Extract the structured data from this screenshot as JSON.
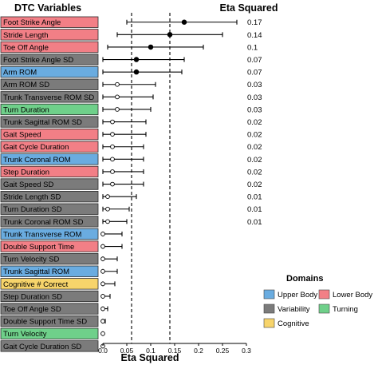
{
  "header": {
    "left_title": "DTC Variables",
    "right_title": "Eta Squared"
  },
  "colors": {
    "Lower Body": "#f27f86",
    "Upper Body": "#6aace0",
    "Variability": "#7b7b7b",
    "Turning": "#6fd08a",
    "Cognitive": "#f7d46b"
  },
  "legend": {
    "title": "Domains",
    "items": [
      {
        "label": "Upper Body",
        "color": "#6aace0"
      },
      {
        "label": "Lower Body",
        "color": "#f27f86"
      },
      {
        "label": "Variability",
        "color": "#7b7b7b"
      },
      {
        "label": "Turning",
        "color": "#6fd08a"
      },
      {
        "label": "Cognitive",
        "color": "#f7d46b"
      }
    ]
  },
  "chart_data": {
    "type": "scatter",
    "title": "",
    "xlabel": "Eta Squared",
    "ylabel": "",
    "xlim": [
      0,
      0.3
    ],
    "xticks": [
      "0.0",
      "0.05",
      "0.1",
      "0.15",
      "0.2",
      "0.25",
      "0.3"
    ],
    "reference_lines": [
      0.06,
      0.14
    ],
    "series": [
      {
        "label": "Foot Strike Angle",
        "domain": "Lower Body",
        "estimate": 0.17,
        "ci": [
          0.05,
          0.28
        ],
        "filled": true,
        "eta_label": "0.17"
      },
      {
        "label": "Stride Length",
        "domain": "Lower Body",
        "estimate": 0.14,
        "ci": [
          0.03,
          0.25
        ],
        "filled": true,
        "eta_label": "0.14"
      },
      {
        "label": "Toe Off Angle",
        "domain": "Lower Body",
        "estimate": 0.1,
        "ci": [
          0.01,
          0.21
        ],
        "filled": true,
        "eta_label": "0.1"
      },
      {
        "label": "Foot Strike Angle SD",
        "domain": "Variability",
        "estimate": 0.07,
        "ci": [
          0.0,
          0.17
        ],
        "filled": true,
        "eta_label": "0.07"
      },
      {
        "label": "Arm ROM",
        "domain": "Upper Body",
        "estimate": 0.07,
        "ci": [
          0.0,
          0.165
        ],
        "filled": true,
        "eta_label": "0.07"
      },
      {
        "label": "Arm ROM SD",
        "domain": "Variability",
        "estimate": 0.03,
        "ci": [
          0.0,
          0.11
        ],
        "filled": false,
        "eta_label": "0.03"
      },
      {
        "label": "Trunk Transverse ROM SD",
        "domain": "Variability",
        "estimate": 0.03,
        "ci": [
          0.0,
          0.105
        ],
        "filled": false,
        "eta_label": "0.03"
      },
      {
        "label": "Turn Duration",
        "domain": "Turning",
        "estimate": 0.03,
        "ci": [
          0.0,
          0.1
        ],
        "filled": false,
        "eta_label": "0.03"
      },
      {
        "label": "Trunk Sagittal ROM SD",
        "domain": "Variability",
        "estimate": 0.02,
        "ci": [
          0.0,
          0.09
        ],
        "filled": false,
        "eta_label": "0.02"
      },
      {
        "label": "Gait Speed",
        "domain": "Lower Body",
        "estimate": 0.02,
        "ci": [
          0.0,
          0.09
        ],
        "filled": false,
        "eta_label": "0.02"
      },
      {
        "label": "Gait Cycle Duration",
        "domain": "Lower Body",
        "estimate": 0.02,
        "ci": [
          0.0,
          0.085
        ],
        "filled": false,
        "eta_label": "0.02"
      },
      {
        "label": "Trunk Coronal ROM",
        "domain": "Upper Body",
        "estimate": 0.02,
        "ci": [
          0.0,
          0.085
        ],
        "filled": false,
        "eta_label": "0.02"
      },
      {
        "label": "Step Duration",
        "domain": "Lower Body",
        "estimate": 0.02,
        "ci": [
          0.0,
          0.085
        ],
        "filled": false,
        "eta_label": "0.02"
      },
      {
        "label": "Gait Speed SD",
        "domain": "Variability",
        "estimate": 0.02,
        "ci": [
          0.0,
          0.085
        ],
        "filled": false,
        "eta_label": "0.02"
      },
      {
        "label": "Stride Length SD",
        "domain": "Variability",
        "estimate": 0.01,
        "ci": [
          0.0,
          0.07
        ],
        "filled": false,
        "eta_label": "0.01"
      },
      {
        "label": "Turn Duration SD",
        "domain": "Variability",
        "estimate": 0.01,
        "ci": [
          0.0,
          0.055
        ],
        "filled": false,
        "eta_label": "0.01"
      },
      {
        "label": "Trunk Coronal ROM SD",
        "domain": "Variability",
        "estimate": 0.01,
        "ci": [
          0.0,
          0.05
        ],
        "filled": false,
        "eta_label": "0.01"
      },
      {
        "label": "Trunk Transverse ROM",
        "domain": "Upper Body",
        "estimate": 0.0,
        "ci": [
          0.0,
          0.04
        ],
        "filled": false,
        "eta_label": ""
      },
      {
        "label": "Double Support Time",
        "domain": "Lower Body",
        "estimate": 0.0,
        "ci": [
          0.0,
          0.04
        ],
        "filled": false,
        "eta_label": ""
      },
      {
        "label": "Turn Velocity SD",
        "domain": "Variability",
        "estimate": 0.0,
        "ci": [
          0.0,
          0.03
        ],
        "filled": false,
        "eta_label": ""
      },
      {
        "label": "Trunk Sagittal ROM",
        "domain": "Upper Body",
        "estimate": 0.0,
        "ci": [
          0.0,
          0.03
        ],
        "filled": false,
        "eta_label": ""
      },
      {
        "label": "Cognitive # Correct",
        "domain": "Cognitive",
        "estimate": 0.0,
        "ci": [
          0.0,
          0.025
        ],
        "filled": false,
        "eta_label": ""
      },
      {
        "label": "Step Duration SD",
        "domain": "Variability",
        "estimate": 0.0,
        "ci": [
          0.0,
          0.015
        ],
        "filled": false,
        "eta_label": ""
      },
      {
        "label": "Toe Off Angle SD",
        "domain": "Variability",
        "estimate": 0.0,
        "ci": [
          0.0,
          0.01
        ],
        "filled": false,
        "eta_label": ""
      },
      {
        "label": "Double Support Time SD",
        "domain": "Variability",
        "estimate": 0.0,
        "ci": [
          0.0,
          0.005
        ],
        "filled": false,
        "eta_label": ""
      },
      {
        "label": "Turn Velocity",
        "domain": "Turning",
        "estimate": 0.0,
        "ci": [
          0.0,
          0.0
        ],
        "filled": false,
        "eta_label": ""
      },
      {
        "label": "Gait Cycle Duration SD",
        "domain": "Variability",
        "estimate": 0.0,
        "ci": [
          0.0,
          0.0
        ],
        "filled": false,
        "eta_label": ""
      }
    ]
  }
}
